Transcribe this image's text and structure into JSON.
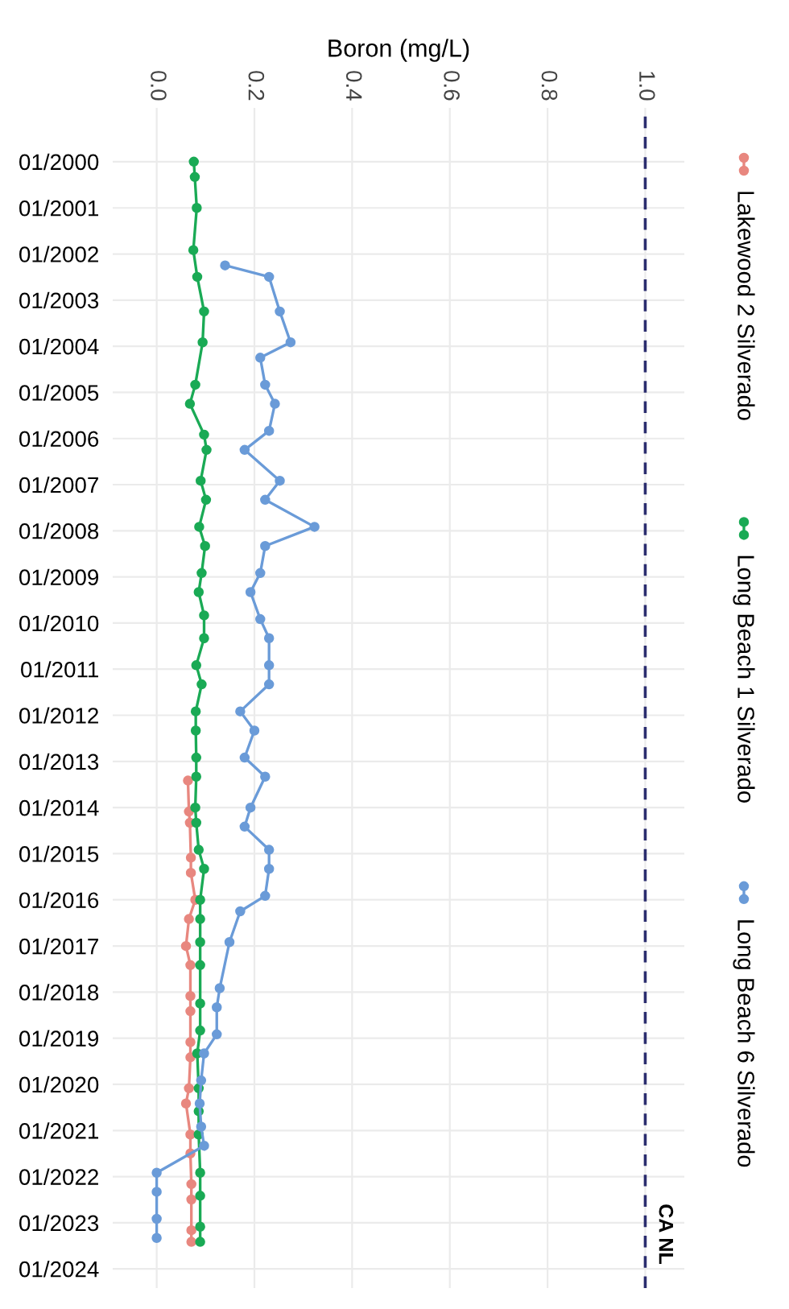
{
  "chart_data": {
    "type": "line",
    "orientation": "horizontal",
    "xlabel": "Boron (mg/L)",
    "xlim": [
      -0.09,
      1.08
    ],
    "xticks": [
      {
        "value": 0,
        "label": "0.0"
      },
      0.2,
      0.4,
      0.6,
      0.8,
      {
        "value": 1,
        "label": "1.0"
      }
    ],
    "ylim": [
      "2024-06",
      "1998-11"
    ],
    "yticks": [
      {
        "value": "2000-01",
        "label": "01/2000"
      },
      {
        "value": "2001-01",
        "label": "01/2001"
      },
      {
        "value": "2002-01",
        "label": "01/2002"
      },
      {
        "value": "2003-01",
        "label": "01/2003"
      },
      {
        "value": "2004-01",
        "label": "01/2004"
      },
      {
        "value": "2005-01",
        "label": "01/2005"
      },
      {
        "value": "2006-01",
        "label": "01/2006"
      },
      {
        "value": "2007-01",
        "label": "01/2007"
      },
      {
        "value": "2008-01",
        "label": "01/2008"
      },
      {
        "value": "2009-01",
        "label": "01/2009"
      },
      {
        "value": "2010-01",
        "label": "01/2010"
      },
      {
        "value": "2011-01",
        "label": "01/2011"
      },
      {
        "value": "2012-01",
        "label": "01/2012"
      },
      {
        "value": "2013-01",
        "label": "01/2013"
      },
      {
        "value": "2014-01",
        "label": "01/2014"
      },
      {
        "value": "2015-01",
        "label": "01/2015"
      },
      {
        "value": "2016-01",
        "label": "01/2016"
      },
      {
        "value": "2017-01",
        "label": "01/2017"
      },
      {
        "value": "2018-01",
        "label": "01/2018"
      },
      {
        "value": "2019-01",
        "label": "01/2019"
      },
      {
        "value": "2020-01",
        "label": "01/2020"
      },
      {
        "value": "2021-01",
        "label": "01/2021"
      },
      {
        "value": "2022-01",
        "label": "01/2022"
      },
      {
        "value": "2023-01",
        "label": "01/2023"
      },
      {
        "value": "2024-01",
        "label": "01/2024"
      }
    ],
    "grid": true,
    "legend": "right",
    "marker": "circle",
    "line_style": "solid",
    "ref_lines": [
      {
        "axis": "x",
        "value": 1.0,
        "label": "CA NL",
        "color": "#2b2d6e",
        "line_style": "dashed"
      }
    ],
    "series": [
      {
        "name": "Lakewood 2 Silverado",
        "color": "#e8877f",
        "x": [
          "2013-06",
          "2014-02",
          "2014-05",
          "2015-02",
          "2015-06",
          "2016-01",
          "2016-06",
          "2017-01",
          "2017-06",
          "2018-02",
          "2018-06",
          "2019-02",
          "2019-06",
          "2020-02",
          "2020-06",
          "2021-02",
          "2021-07",
          "2022-03",
          "2022-07",
          "2023-03",
          "2023-06"
        ],
        "values": [
          0.064,
          0.066,
          0.068,
          0.07,
          0.07,
          0.079,
          0.066,
          0.06,
          0.069,
          0.069,
          0.069,
          0.069,
          0.069,
          0.066,
          0.06,
          0.069,
          0.069,
          0.071,
          0.071,
          0.071,
          0.071
        ]
      },
      {
        "name": "Long Beach 1 Silverado",
        "color": "#1aaa55",
        "x": [
          "2000-01",
          "2000-05",
          "2001-01",
          "2001-12",
          "2002-07",
          "2003-04",
          "2003-12",
          "2004-11",
          "2005-04",
          "2005-12",
          "2006-04",
          "2006-12",
          "2007-05",
          "2007-12",
          "2008-05",
          "2008-12",
          "2009-05",
          "2009-11",
          "2010-05",
          "2010-12",
          "2011-05",
          "2011-12",
          "2012-05",
          "2012-12",
          "2013-05",
          "2014-01",
          "2014-05",
          "2014-12",
          "2015-05",
          "2016-01",
          "2016-06",
          "2016-12",
          "2017-06",
          "2018-04",
          "2018-11",
          "2019-05",
          "2020-02",
          "2020-08",
          "2021-02",
          "2021-12",
          "2022-06",
          "2023-02",
          "2023-06"
        ],
        "values": [
          0.076,
          0.078,
          0.082,
          0.075,
          0.083,
          0.097,
          0.094,
          0.079,
          0.068,
          0.097,
          0.102,
          0.09,
          0.101,
          0.087,
          0.099,
          0.092,
          0.086,
          0.097,
          0.097,
          0.081,
          0.092,
          0.08,
          0.08,
          0.081,
          0.081,
          0.079,
          0.081,
          0.086,
          0.097,
          0.089,
          0.089,
          0.089,
          0.089,
          0.089,
          0.089,
          0.083,
          0.086,
          0.086,
          0.086,
          0.089,
          0.089,
          0.089,
          0.089
        ]
      },
      {
        "name": "Long Beach 6 Silverado",
        "color": "#6a9bd8",
        "x": [
          "2002-04",
          "2002-07",
          "2003-04",
          "2003-12",
          "2004-04",
          "2004-11",
          "2005-04",
          "2005-11",
          "2006-04",
          "2006-12",
          "2007-05",
          "2007-12",
          "2008-05",
          "2008-12",
          "2009-05",
          "2009-12",
          "2010-05",
          "2010-12",
          "2011-05",
          "2011-12",
          "2012-05",
          "2012-12",
          "2013-05",
          "2014-01",
          "2014-06",
          "2014-12",
          "2015-05",
          "2015-12",
          "2016-04",
          "2016-12",
          "2017-12",
          "2018-05",
          "2018-12",
          "2019-05",
          "2019-12",
          "2020-06",
          "2020-12",
          "2021-05",
          "2021-12",
          "2022-05",
          "2022-12",
          "2023-05"
        ],
        "values": [
          0.14,
          0.23,
          0.252,
          0.274,
          0.212,
          0.222,
          0.242,
          0.23,
          0.18,
          0.252,
          0.222,
          0.323,
          0.222,
          0.212,
          0.192,
          0.212,
          0.23,
          0.23,
          0.23,
          0.171,
          0.2,
          0.18,
          0.222,
          0.192,
          0.18,
          0.23,
          0.23,
          0.222,
          0.171,
          0.149,
          0.129,
          0.123,
          0.123,
          0.097,
          0.091,
          0.088,
          0.091,
          0.097,
          0.0,
          0.0,
          0.0,
          0.0
        ]
      }
    ]
  }
}
